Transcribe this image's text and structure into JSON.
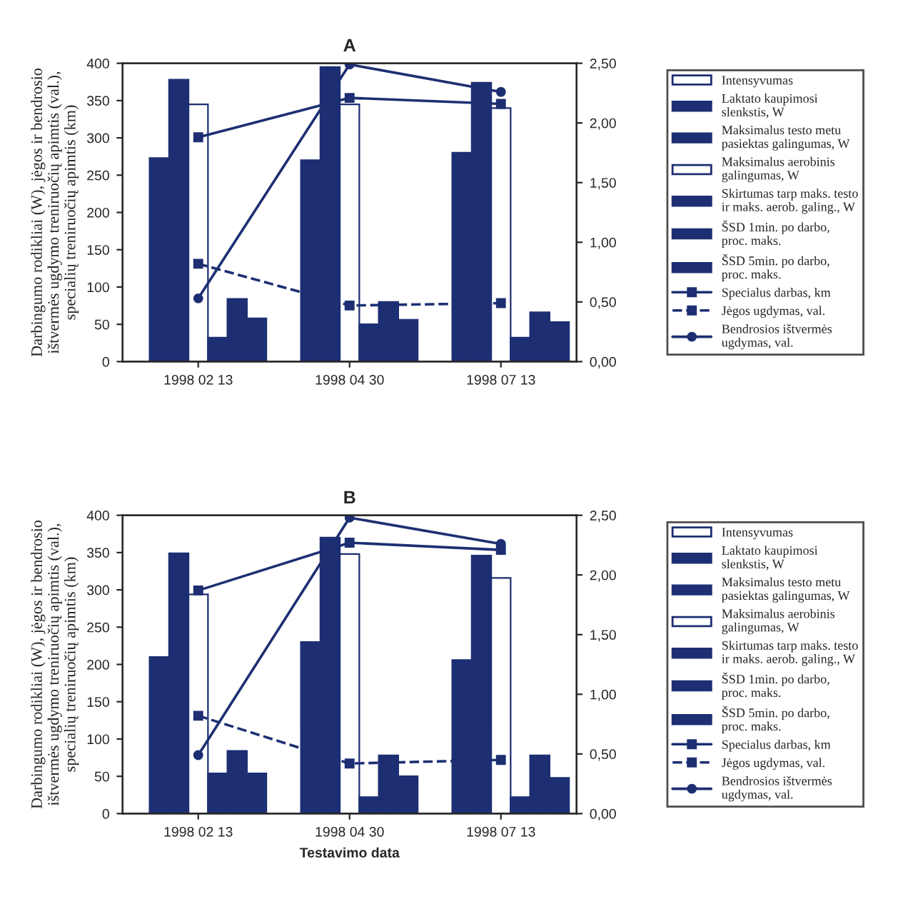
{
  "chart_data": [
    {
      "type": "bar",
      "title": "A",
      "ylabel": "Darbingumo rodikliai (W), jėgos ir bendrosio\ništvermės ugdymo treniruočių apimtis (val.),\nspecialių treniruočių apimtis (km)",
      "categories": [
        "1998 02 13",
        "1998 04 30",
        "1998 07 13"
      ],
      "legend": "right",
      "grid": false,
      "ylim": [
        0,
        400
      ],
      "yticks": [
        0,
        50,
        100,
        150,
        200,
        250,
        300,
        350,
        400
      ],
      "y2lim": [
        0,
        2.5
      ],
      "y2ticks": [
        {
          "value": 0,
          "label": "0,00"
        },
        {
          "value": 0.5,
          "label": "0,50"
        },
        {
          "value": 1,
          "label": "1,00"
        },
        {
          "value": 1.5,
          "label": "1,50"
        },
        {
          "value": 2,
          "label": "2,00"
        },
        {
          "value": 2.5,
          "label": "2,50"
        }
      ],
      "series": [
        {
          "name": "Intensyvumas",
          "color": "#ffffff",
          "values": [
            null,
            null,
            null
          ]
        },
        {
          "name": "Laktato kaupimosi\nslenkstis, W",
          "color": "#1d2f72",
          "values": [
            273,
            270,
            280
          ]
        },
        {
          "name": "Maksimalus testo metu\npasiektas galingumas, W",
          "color": "#1d2f72",
          "values": [
            378,
            395,
            374
          ]
        },
        {
          "name": "Maksimalus aerobinis\ngalingumas, W",
          "color": "#ffffff",
          "values": [
            345,
            345,
            340
          ]
        },
        {
          "name": "Skirtumas tarp maks. testo\nir maks. aerob. galing., W",
          "color": "#1d2f72",
          "values": [
            32,
            50,
            32
          ]
        },
        {
          "name": "ŠSD 1min. po darbo,\nproc. maks.",
          "color": "#1d2f72",
          "values": [
            84,
            80,
            66
          ]
        },
        {
          "name": "ŠSD 5min. po darbo,\nproc. maks.",
          "color": "#1d2f72",
          "values": [
            58,
            56,
            53
          ]
        },
        {
          "name": "Specialus darbas, km",
          "type": "line",
          "axis": "y2",
          "color": "#1d2f72",
          "marker": "square",
          "line_style": "solid",
          "values": [
            1.88,
            2.21,
            2.16
          ]
        },
        {
          "name": "Jėgos ugdymas, val.",
          "type": "line",
          "axis": "y2",
          "color": "#1d2f72",
          "marker": "square",
          "line_style": "dashed",
          "values": [
            0.82,
            0.47,
            0.49
          ]
        },
        {
          "name": "Bendrosios ištvermės\nugdymas, val.",
          "type": "line",
          "axis": "y2",
          "color": "#1d2f72",
          "marker": "circle",
          "line_style": "solid",
          "values": [
            0.53,
            2.49,
            2.26
          ]
        }
      ]
    },
    {
      "type": "bar",
      "title": "B",
      "ylabel": "Darbingumo rodikliai (W), jėgos ir bendrosio\ništvermės ugdymo treniruočių apimtis (val.),\nspecialių treniruočių apimtis (km)",
      "xlabel": "Testavimo data",
      "categories": [
        "1998 02 13",
        "1998 04 30",
        "1998 07 13"
      ],
      "legend": "right",
      "grid": false,
      "ylim": [
        0,
        400
      ],
      "yticks": [
        0,
        50,
        100,
        150,
        200,
        250,
        300,
        350,
        400
      ],
      "y2lim": [
        0,
        2.5
      ],
      "y2ticks": [
        {
          "value": 0,
          "label": "0,00"
        },
        {
          "value": 0.5,
          "label": "0,50"
        },
        {
          "value": 1,
          "label": "1,00"
        },
        {
          "value": 1.5,
          "label": "1,50"
        },
        {
          "value": 2,
          "label": "2,00"
        },
        {
          "value": 2.5,
          "label": "2,50"
        }
      ],
      "series": [
        {
          "name": "Intensyvumas",
          "color": "#ffffff",
          "values": [
            null,
            null,
            null
          ]
        },
        {
          "name": "Laktato kaupimosi\nslenkstis, W",
          "color": "#1d2f72",
          "values": [
            210,
            230,
            206
          ]
        },
        {
          "name": "Maksimalus testo metu\npasiektas galingumas, W",
          "color": "#1d2f72",
          "values": [
            349,
            370,
            346
          ]
        },
        {
          "name": "Maksimalus aerobinis\ngalingumas, W",
          "color": "#ffffff",
          "values": [
            294,
            348,
            316
          ]
        },
        {
          "name": "Skirtumas tarp maks. testo\nir maks. aerob. galing., W",
          "color": "#1d2f72",
          "values": [
            54,
            22,
            22
          ]
        },
        {
          "name": "ŠSD 1min. po darbo,\nproc. maks.",
          "color": "#1d2f72",
          "values": [
            84,
            78,
            78
          ]
        },
        {
          "name": "ŠSD 5min. po darbo,\nproc. maks.",
          "color": "#1d2f72",
          "values": [
            54,
            50,
            48
          ]
        },
        {
          "name": "Specialus darbas, km",
          "type": "line",
          "axis": "y2",
          "color": "#1d2f72",
          "marker": "square",
          "line_style": "solid",
          "values": [
            1.87,
            2.27,
            2.21
          ]
        },
        {
          "name": "Jėgos ugdymas, val.",
          "type": "line",
          "axis": "y2",
          "color": "#1d2f72",
          "marker": "square",
          "line_style": "dashed",
          "values": [
            0.82,
            0.42,
            0.45
          ]
        },
        {
          "name": "Bendrosios ištvermės\nugdymas, val.",
          "type": "line",
          "axis": "y2",
          "color": "#1d2f72",
          "marker": "circle",
          "line_style": "solid",
          "values": [
            0.49,
            2.48,
            2.26
          ]
        }
      ]
    }
  ]
}
